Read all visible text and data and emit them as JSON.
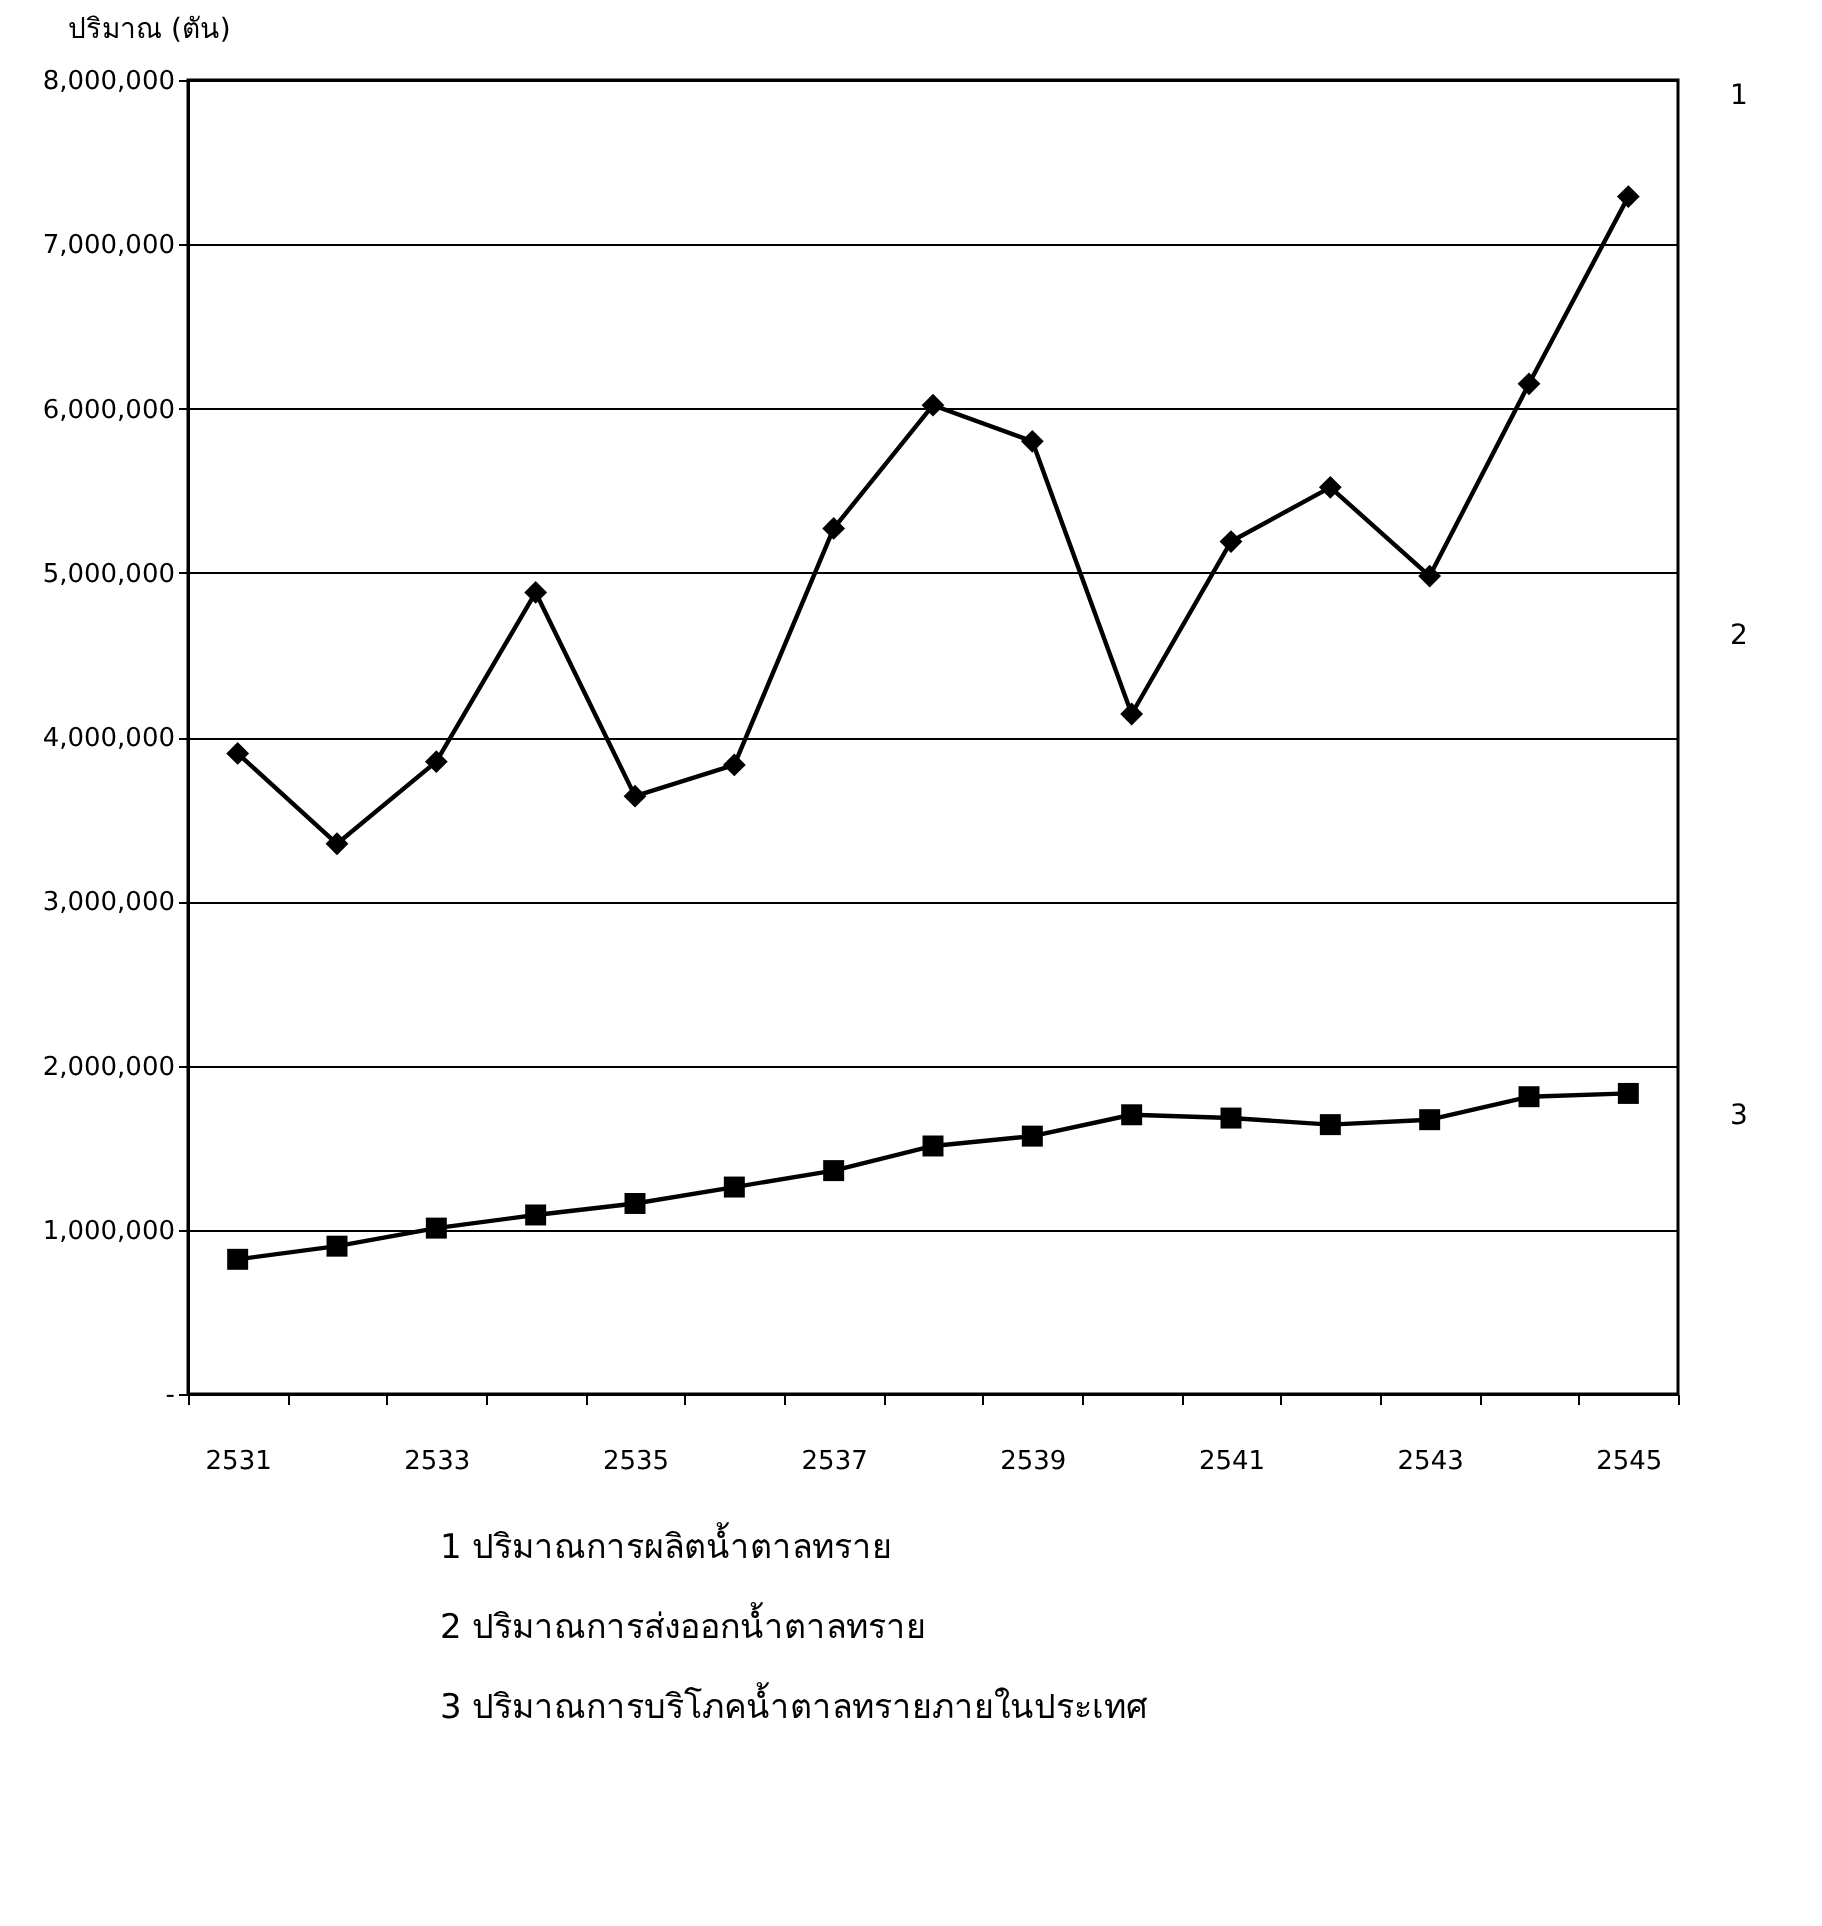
{
  "chart_data": {
    "type": "line",
    "ylabel": "ปริมาณ (ตัน)",
    "categories": [
      "2531",
      null,
      "2533",
      null,
      "2535",
      null,
      "2537",
      null,
      "2539",
      null,
      "2541",
      null,
      "2543",
      null,
      "2545"
    ],
    "series": [
      {
        "color": "#000000",
        "marker": "diamond",
        "values": [
          3900000,
          3350000,
          3850000,
          4880000,
          3640000,
          3830000,
          5270000,
          6020000,
          5800000,
          4140000,
          5190000,
          5520000,
          4980000,
          6150000,
          7290000
        ]
      },
      {
        "color": "#000000",
        "marker": "square",
        "values": [
          820000,
          900000,
          1010000,
          1090000,
          1160000,
          1260000,
          1360000,
          1510000,
          1570000,
          1700000,
          1680000,
          1640000,
          1670000,
          1810000,
          1830000
        ]
      }
    ],
    "ylim": [
      0,
      8000000
    ],
    "yticks": [
      {
        "value": 0,
        "label": "-"
      },
      {
        "value": 1000000,
        "label": "1,000,000"
      },
      {
        "value": 2000000,
        "label": "2,000,000"
      },
      {
        "value": 3000000,
        "label": "3,000,000"
      },
      {
        "value": 4000000,
        "label": "4,000,000"
      },
      {
        "value": 5000000,
        "label": "5,000,000"
      },
      {
        "value": 6000000,
        "label": "6,000,000"
      },
      {
        "value": 7000000,
        "label": "7,000,000"
      },
      {
        "value": 8000000,
        "label": "8,000,000"
      }
    ],
    "grid": "y",
    "annotations": [
      "1",
      "2",
      "3",
      "1  ปริมาณการผลิตน้ำตาลทราย",
      "2  ปริมาณการส่งออกน้ำตาลทราย",
      "3  ปริมาณการบริโภคน้ำตาลทรายภายในประเทศ"
    ]
  }
}
